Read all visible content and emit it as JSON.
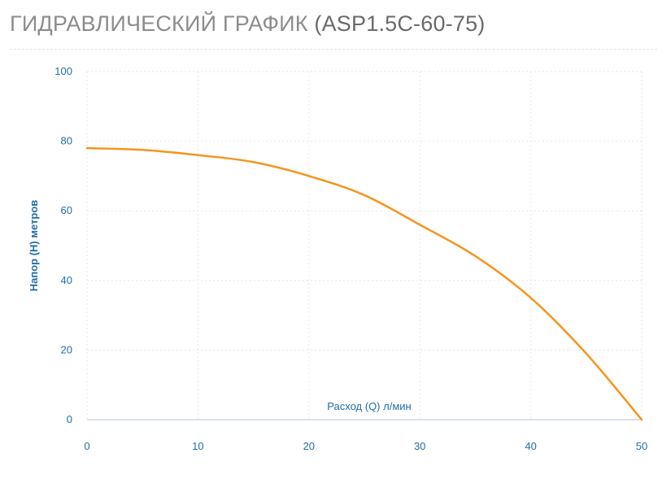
{
  "header": {
    "title": "ГИДРАВЛИЧЕСКИЙ ГРАФИК",
    "model": "(ASP1.5C-60-75)"
  },
  "chart_data": {
    "type": "line",
    "title": "ГИДРАВЛИЧЕСКИЙ ГРАФИК (ASP1.5C-60-75)",
    "xlabel": "Расход (Q) л/мин",
    "ylabel": "Напор (H) метров",
    "xlim": [
      0,
      50
    ],
    "ylim": [
      0,
      100
    ],
    "x_ticks": [
      0,
      10,
      20,
      30,
      40,
      50
    ],
    "y_ticks": [
      0,
      20,
      40,
      60,
      80,
      100
    ],
    "grid": true,
    "line_color": "#f7941d",
    "series": [
      {
        "x": [
          0,
          5,
          10,
          15,
          20,
          25,
          30,
          35,
          40,
          45,
          50
        ],
        "y": [
          78,
          77.5,
          76,
          74,
          70,
          64.5,
          56,
          47,
          35,
          19,
          0
        ]
      }
    ]
  }
}
